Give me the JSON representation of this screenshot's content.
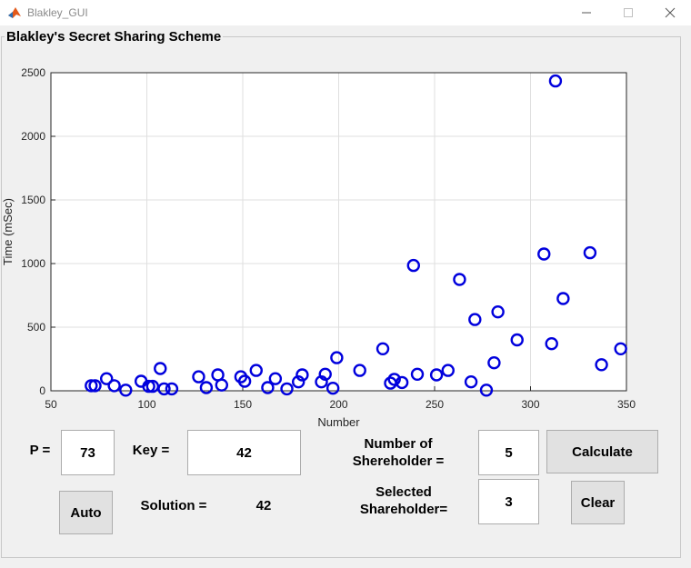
{
  "window": {
    "title": "Blakley_GUI",
    "icon": "matlab-icon"
  },
  "panel": {
    "title": "Blakley's Secret Sharing Scheme"
  },
  "chart_data": {
    "type": "scatter",
    "xlabel": "Number",
    "ylabel": "Time (mSec)",
    "xlim": [
      50,
      350
    ],
    "ylim": [
      0,
      2500
    ],
    "xticks": [
      50,
      100,
      150,
      200,
      250,
      300,
      350
    ],
    "yticks": [
      0,
      500,
      1000,
      1500,
      2000,
      2500
    ],
    "grid": true,
    "marker": "circle-open",
    "color": "#0000dd",
    "points": [
      [
        71,
        40
      ],
      [
        73,
        40
      ],
      [
        79,
        95
      ],
      [
        83,
        40
      ],
      [
        89,
        5
      ],
      [
        97,
        75
      ],
      [
        101,
        35
      ],
      [
        103,
        35
      ],
      [
        107,
        175
      ],
      [
        109,
        15
      ],
      [
        113,
        15
      ],
      [
        127,
        110
      ],
      [
        131,
        25
      ],
      [
        137,
        125
      ],
      [
        139,
        45
      ],
      [
        149,
        110
      ],
      [
        151,
        75
      ],
      [
        157,
        160
      ],
      [
        163,
        25
      ],
      [
        167,
        95
      ],
      [
        173,
        15
      ],
      [
        179,
        70
      ],
      [
        181,
        125
      ],
      [
        191,
        70
      ],
      [
        193,
        130
      ],
      [
        197,
        20
      ],
      [
        199,
        260
      ],
      [
        211,
        160
      ],
      [
        223,
        330
      ],
      [
        227,
        60
      ],
      [
        229,
        90
      ],
      [
        233,
        65
      ],
      [
        239,
        985
      ],
      [
        241,
        130
      ],
      [
        251,
        125
      ],
      [
        257,
        160
      ],
      [
        263,
        875
      ],
      [
        269,
        70
      ],
      [
        271,
        560
      ],
      [
        277,
        5
      ],
      [
        281,
        220
      ],
      [
        283,
        620
      ],
      [
        293,
        400
      ],
      [
        307,
        1075
      ],
      [
        311,
        370
      ],
      [
        313,
        2435
      ],
      [
        317,
        725
      ],
      [
        331,
        1085
      ],
      [
        337,
        205
      ],
      [
        347,
        330
      ]
    ]
  },
  "controls": {
    "p_label": "P =",
    "p_value": "73",
    "key_label": "Key =",
    "key_value": "42",
    "num_shareholders_label_line1": "Number of",
    "num_shareholders_label_line2": "Shereholder =",
    "num_shareholders_value": "5",
    "selected_shareholder_label_line1": "Selected",
    "selected_shareholder_label_line2": "Shareholder=",
    "selected_shareholder_value": "3",
    "solution_label": "Solution =",
    "solution_value": "42",
    "calculate_label": "Calculate",
    "auto_label": "Auto",
    "clear_label": "Clear"
  }
}
